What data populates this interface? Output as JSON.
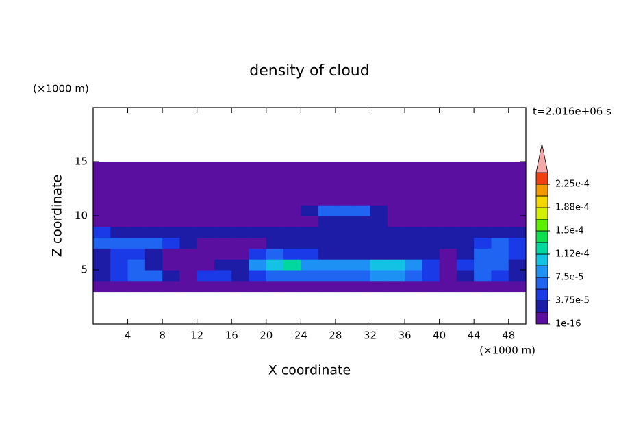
{
  "chart_data": {
    "type": "contour",
    "title": "density of cloud",
    "x_label": "X coordinate",
    "y_label": "Z coordinate",
    "x_unit": "(×1000 m)",
    "y_unit": "(×1000 m)",
    "annotation": "t=2.016e+06 s",
    "xlim": [
      0,
      50
    ],
    "ylim": [
      0,
      20
    ],
    "xticks": [
      4,
      8,
      12,
      16,
      20,
      24,
      28,
      32,
      36,
      40,
      44,
      48
    ],
    "yticks": [
      5,
      10,
      15
    ],
    "x": [
      1,
      3,
      5,
      7,
      9,
      11,
      13,
      15,
      17,
      19,
      21,
      23,
      25,
      27,
      29,
      31,
      33,
      35,
      37,
      39,
      41,
      43,
      45,
      47,
      49
    ],
    "y": [
      3.5,
      4.5,
      5.5,
      6.5,
      7.5,
      8.5,
      9.5,
      10.5,
      11.5,
      12.5,
      13.5,
      14.5
    ],
    "z": [
      [
        5e-06,
        5e-06,
        5e-06,
        5e-06,
        5e-06,
        5e-06,
        5e-06,
        5e-06,
        5e-06,
        5e-06,
        5e-06,
        5e-06,
        5e-06,
        5e-06,
        5e-06,
        5e-06,
        5e-06,
        5e-06,
        5e-06,
        5e-06,
        5e-06,
        5e-06,
        5e-06,
        5e-06,
        5e-06
      ],
      [
        2e-05,
        5e-05,
        7e-05,
        6e-05,
        2e-05,
        1e-05,
        4e-05,
        5e-05,
        2e-05,
        4e-05,
        7e-05,
        6e-05,
        6e-05,
        6e-05,
        6e-05,
        7e-05,
        8e-05,
        9e-05,
        7e-05,
        5e-05,
        1e-05,
        3e-05,
        6e-05,
        5e-05,
        2e-05
      ],
      [
        2e-05,
        4e-05,
        6e-05,
        3e-05,
        1e-05,
        1e-05,
        1e-05,
        2e-05,
        3e-05,
        8e-05,
        0.00011,
        0.00012,
        9e-05,
        8e-05,
        8e-05,
        9e-05,
        0.00011,
        0.00011,
        8e-05,
        4e-05,
        1e-05,
        4e-05,
        7e-05,
        6e-05,
        3e-05
      ],
      [
        3e-05,
        5e-05,
        4e-05,
        2e-05,
        1e-05,
        1e-05,
        1e-05,
        1e-05,
        1e-05,
        4e-05,
        6e-05,
        5e-05,
        4e-05,
        3e-05,
        2e-05,
        2e-05,
        2e-05,
        2e-05,
        2e-05,
        2e-05,
        1e-05,
        3e-05,
        6e-05,
        6e-05,
        4e-05
      ],
      [
        6e-05,
        7e-05,
        6e-05,
        7e-05,
        5e-05,
        2e-05,
        1e-05,
        1e-05,
        1e-05,
        1e-05,
        2e-05,
        2e-05,
        2e-05,
        2e-05,
        2e-05,
        2e-05,
        2e-05,
        2e-05,
        2e-05,
        2e-05,
        2e-05,
        3e-05,
        5e-05,
        6e-05,
        5e-05
      ],
      [
        4e-05,
        2.5e-05,
        2.5e-05,
        2.5e-05,
        3e-05,
        2.5e-05,
        2.5e-05,
        2.5e-05,
        2.5e-05,
        2.5e-05,
        2.5e-05,
        2.5e-05,
        2.5e-05,
        2.5e-05,
        2.5e-05,
        2.5e-05,
        2.5e-05,
        2.5e-05,
        2.5e-05,
        2.5e-05,
        2.5e-05,
        2.5e-05,
        2.5e-05,
        2.5e-05,
        2.5e-05
      ],
      [
        1e-05,
        1e-05,
        1e-05,
        1e-05,
        1e-05,
        1e-05,
        1e-05,
        1e-05,
        1e-05,
        1e-05,
        1e-05,
        1e-05,
        1e-05,
        3e-05,
        3e-05,
        3e-05,
        3e-05,
        1e-05,
        1e-05,
        1e-05,
        1e-05,
        1e-05,
        1e-05,
        1e-05,
        1e-05
      ],
      [
        1e-05,
        1e-05,
        1e-05,
        1e-05,
        1e-05,
        1e-05,
        1e-05,
        1e-05,
        1e-05,
        1e-05,
        1e-05,
        1e-05,
        3e-05,
        6e-05,
        6e-05,
        6e-05,
        3e-05,
        1e-05,
        1e-05,
        1e-05,
        1e-05,
        1e-05,
        1e-05,
        1e-05,
        1e-05
      ],
      [
        1e-05,
        1e-05,
        1e-05,
        1e-05,
        1e-05,
        1e-05,
        1e-05,
        1e-05,
        1e-05,
        1e-05,
        1e-05,
        1e-05,
        1e-05,
        1e-05,
        1e-05,
        1e-05,
        1e-05,
        1e-05,
        1e-05,
        1e-05,
        1e-05,
        1e-05,
        1e-05,
        1e-05,
        1e-05
      ],
      [
        1e-05,
        1e-05,
        1e-05,
        1e-05,
        1e-05,
        1e-05,
        1e-05,
        1e-05,
        1e-05,
        1e-05,
        1e-05,
        1e-05,
        1e-05,
        1e-05,
        1e-05,
        1e-05,
        1e-05,
        1e-05,
        1e-05,
        1e-05,
        1e-05,
        1e-05,
        1e-05,
        1e-05,
        1e-05
      ],
      [
        1e-05,
        1e-05,
        1e-05,
        1e-05,
        1e-05,
        1e-05,
        1e-05,
        1e-05,
        1e-05,
        1e-05,
        1e-05,
        1e-05,
        1e-05,
        1e-05,
        1e-05,
        1e-05,
        1e-05,
        1e-05,
        1e-05,
        1e-05,
        1e-05,
        1e-05,
        1e-05,
        1e-05,
        1e-05
      ],
      [
        1e-05,
        1e-05,
        1e-05,
        1e-05,
        1e-05,
        1e-05,
        1e-05,
        1e-05,
        1e-05,
        1e-05,
        1e-05,
        1e-05,
        1e-05,
        1e-05,
        1e-05,
        1e-05,
        1e-05,
        1e-05,
        1e-05,
        1e-05,
        1e-05,
        1e-05,
        1e-05,
        1e-05,
        1e-05
      ]
    ],
    "levels": [
      1e-16,
      1.875e-05,
      3.75e-05,
      5.625e-05,
      7.5e-05,
      9.375e-05,
      0.0001125,
      0.00013125,
      0.00015,
      0.00016875,
      0.0001875,
      0.00020625,
      0.000225
    ],
    "colors": [
      "#5a0fa0",
      "#1c1ca6",
      "#1a3ae8",
      "#2064f2",
      "#1e92f4",
      "#14c2e4",
      "#00d8a0",
      "#10e050",
      "#5af000",
      "#d4f000",
      "#f4d800",
      "#f49a00",
      "#f04010"
    ],
    "extend_color": "#f4a8a8",
    "colorbar_ticks": [
      {
        "value": 1e-16,
        "label": "1e-16"
      },
      {
        "value": 3.75e-05,
        "label": "3.75e-5"
      },
      {
        "value": 7.5e-05,
        "label": "7.5e-5"
      },
      {
        "value": 0.0001125,
        "label": "1.12e-4"
      },
      {
        "value": 0.00015,
        "label": "1.5e-4"
      },
      {
        "value": 0.0001875,
        "label": "1.88e-4"
      },
      {
        "value": 0.000225,
        "label": "2.25e-4"
      }
    ]
  }
}
